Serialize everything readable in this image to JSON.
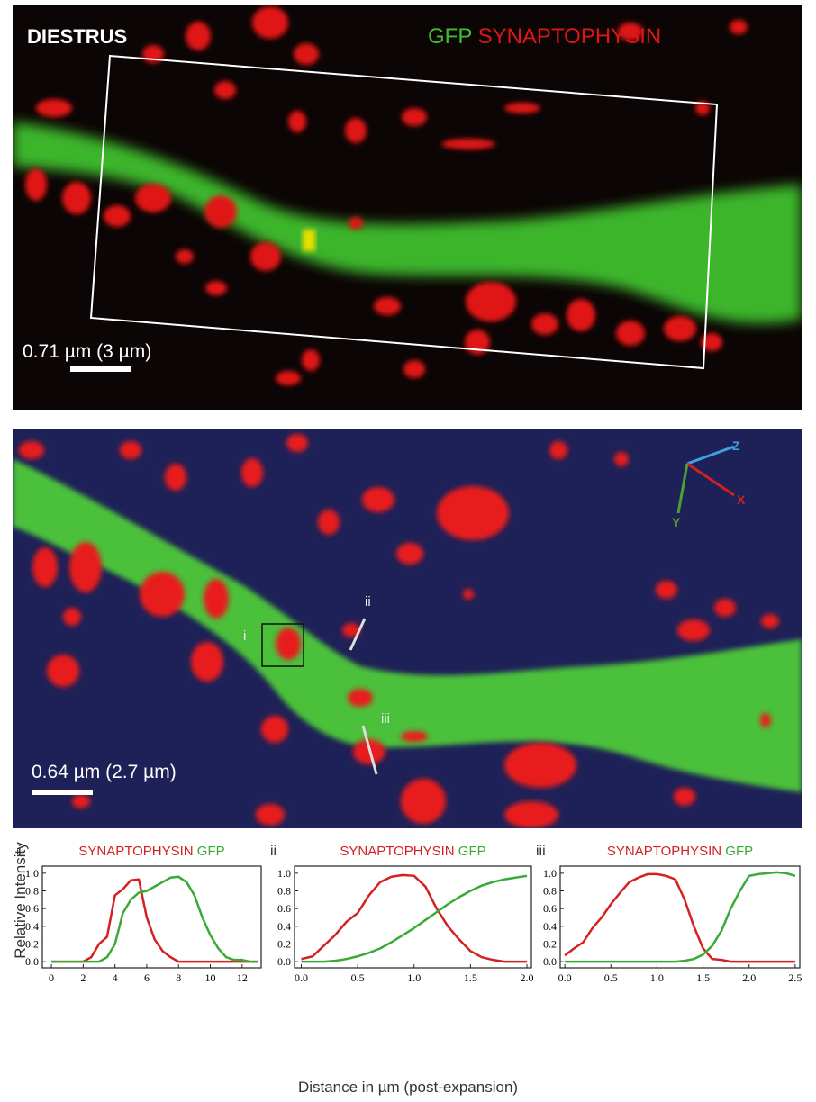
{
  "image_top": {
    "label": "DIESTRUS",
    "legend": [
      "GFP",
      "SYNAPTOPHYSIN"
    ],
    "scale_bar": "0.71 µm (3 µm)"
  },
  "image_bottom": {
    "scale_bar": "0.64 µm (2.7 µm)",
    "roi_labels": [
      "i",
      "ii",
      "iii"
    ],
    "axes": [
      "Z",
      "X",
      "Y"
    ]
  },
  "y_label": "Relative Intensity",
  "x_label": "Distance in µm (post-expansion)",
  "chart_data": [
    {
      "type": "line",
      "panel_label": "i",
      "x": [
        0,
        0.5,
        1,
        1.5,
        2,
        2.5,
        3,
        3.5,
        4,
        4.5,
        5,
        5.5,
        6,
        6.5,
        7,
        7.5,
        8,
        8.5,
        9,
        9.5,
        10,
        10.5,
        11,
        11.5,
        12,
        12.5,
        13
      ],
      "series": [
        {
          "name": "SYNAPTOPHYSIN",
          "color": "#d42020",
          "values": [
            0,
            0,
            0,
            0,
            0,
            0.05,
            0.2,
            0.28,
            0.75,
            0.82,
            0.92,
            0.93,
            0.5,
            0.25,
            0.12,
            0.05,
            0,
            0,
            0,
            0,
            0,
            0,
            0,
            0,
            0,
            0,
            0
          ]
        },
        {
          "name": "GFP",
          "color": "#3aa935",
          "values": [
            0,
            0,
            0,
            0,
            0,
            0,
            0,
            0.05,
            0.2,
            0.55,
            0.7,
            0.78,
            0.8,
            0.85,
            0.9,
            0.95,
            0.96,
            0.9,
            0.75,
            0.5,
            0.3,
            0.15,
            0.05,
            0.02,
            0.02,
            0,
            0
          ]
        }
      ],
      "xlim": [
        -0.57,
        13.2
      ],
      "ylim": [
        -0.07,
        1.08
      ],
      "xticks": [
        0,
        2,
        4,
        6,
        8,
        10,
        12
      ],
      "yticks": [
        {
          "value": 0,
          "label": "0.0"
        },
        0.2,
        0.4,
        0.6,
        0.8,
        {
          "value": 1,
          "label": "1.0"
        }
      ]
    },
    {
      "type": "line",
      "panel_label": "ii",
      "x": [
        0,
        0.1,
        0.2,
        0.3,
        0.4,
        0.5,
        0.6,
        0.7,
        0.8,
        0.9,
        1,
        1.1,
        1.2,
        1.3,
        1.4,
        1.5,
        1.6,
        1.7,
        1.8,
        1.9,
        2
      ],
      "series": [
        {
          "name": "SYNAPTOPHYSIN",
          "color": "#d42020",
          "values": [
            0.03,
            0.06,
            0.18,
            0.3,
            0.45,
            0.55,
            0.75,
            0.9,
            0.96,
            0.98,
            0.97,
            0.85,
            0.6,
            0.4,
            0.25,
            0.12,
            0.05,
            0.02,
            0,
            0,
            0
          ]
        },
        {
          "name": "GFP",
          "color": "#3aa935",
          "values": [
            0,
            0,
            0,
            0.01,
            0.03,
            0.06,
            0.1,
            0.15,
            0.22,
            0.3,
            0.38,
            0.47,
            0.56,
            0.65,
            0.73,
            0.8,
            0.86,
            0.9,
            0.93,
            0.95,
            0.97
          ]
        }
      ],
      "xlim": [
        -0.06,
        2.04
      ],
      "ylim": [
        -0.07,
        1.08
      ],
      "xticks": [
        {
          "value": 0,
          "label": "0.0"
        },
        0.5,
        {
          "value": 1,
          "label": "1.0"
        },
        1.5,
        {
          "value": 2,
          "label": "2.0"
        }
      ],
      "yticks": [
        {
          "value": 0,
          "label": "0.0"
        },
        0.2,
        0.4,
        0.6,
        0.8,
        {
          "value": 1,
          "label": "1.0"
        }
      ]
    },
    {
      "type": "line",
      "panel_label": "iii",
      "x": [
        0,
        0.1,
        0.2,
        0.3,
        0.4,
        0.5,
        0.6,
        0.7,
        0.8,
        0.9,
        1,
        1.1,
        1.2,
        1.3,
        1.4,
        1.5,
        1.6,
        1.7,
        1.8,
        1.9,
        2,
        2.1,
        2.2,
        2.3,
        2.4,
        2.5
      ],
      "series": [
        {
          "name": "SYNAPTOPHYSIN",
          "color": "#d42020",
          "values": [
            0.07,
            0.15,
            0.22,
            0.38,
            0.5,
            0.65,
            0.78,
            0.9,
            0.95,
            0.99,
            0.99,
            0.97,
            0.93,
            0.7,
            0.4,
            0.15,
            0.03,
            0.02,
            0,
            0,
            0,
            0,
            0,
            0,
            0,
            0
          ]
        },
        {
          "name": "GFP",
          "color": "#3aa935",
          "values": [
            0,
            0,
            0,
            0,
            0,
            0,
            0,
            0,
            0,
            0,
            0,
            0,
            0,
            0.01,
            0.03,
            0.08,
            0.18,
            0.35,
            0.6,
            0.8,
            0.97,
            0.99,
            1,
            1.01,
            1,
            0.97
          ]
        }
      ],
      "xlim": [
        -0.05,
        2.55
      ],
      "ylim": [
        -0.07,
        1.08
      ],
      "xticks": [
        {
          "value": 0,
          "label": "0.0"
        },
        0.5,
        {
          "value": 1,
          "label": "1.0"
        },
        1.5,
        {
          "value": 2,
          "label": "2.0"
        },
        2.5
      ],
      "yticks": [
        {
          "value": 0,
          "label": "0.0"
        },
        0.2,
        0.4,
        0.6,
        0.8,
        {
          "value": 1,
          "label": "1.0"
        }
      ]
    }
  ]
}
